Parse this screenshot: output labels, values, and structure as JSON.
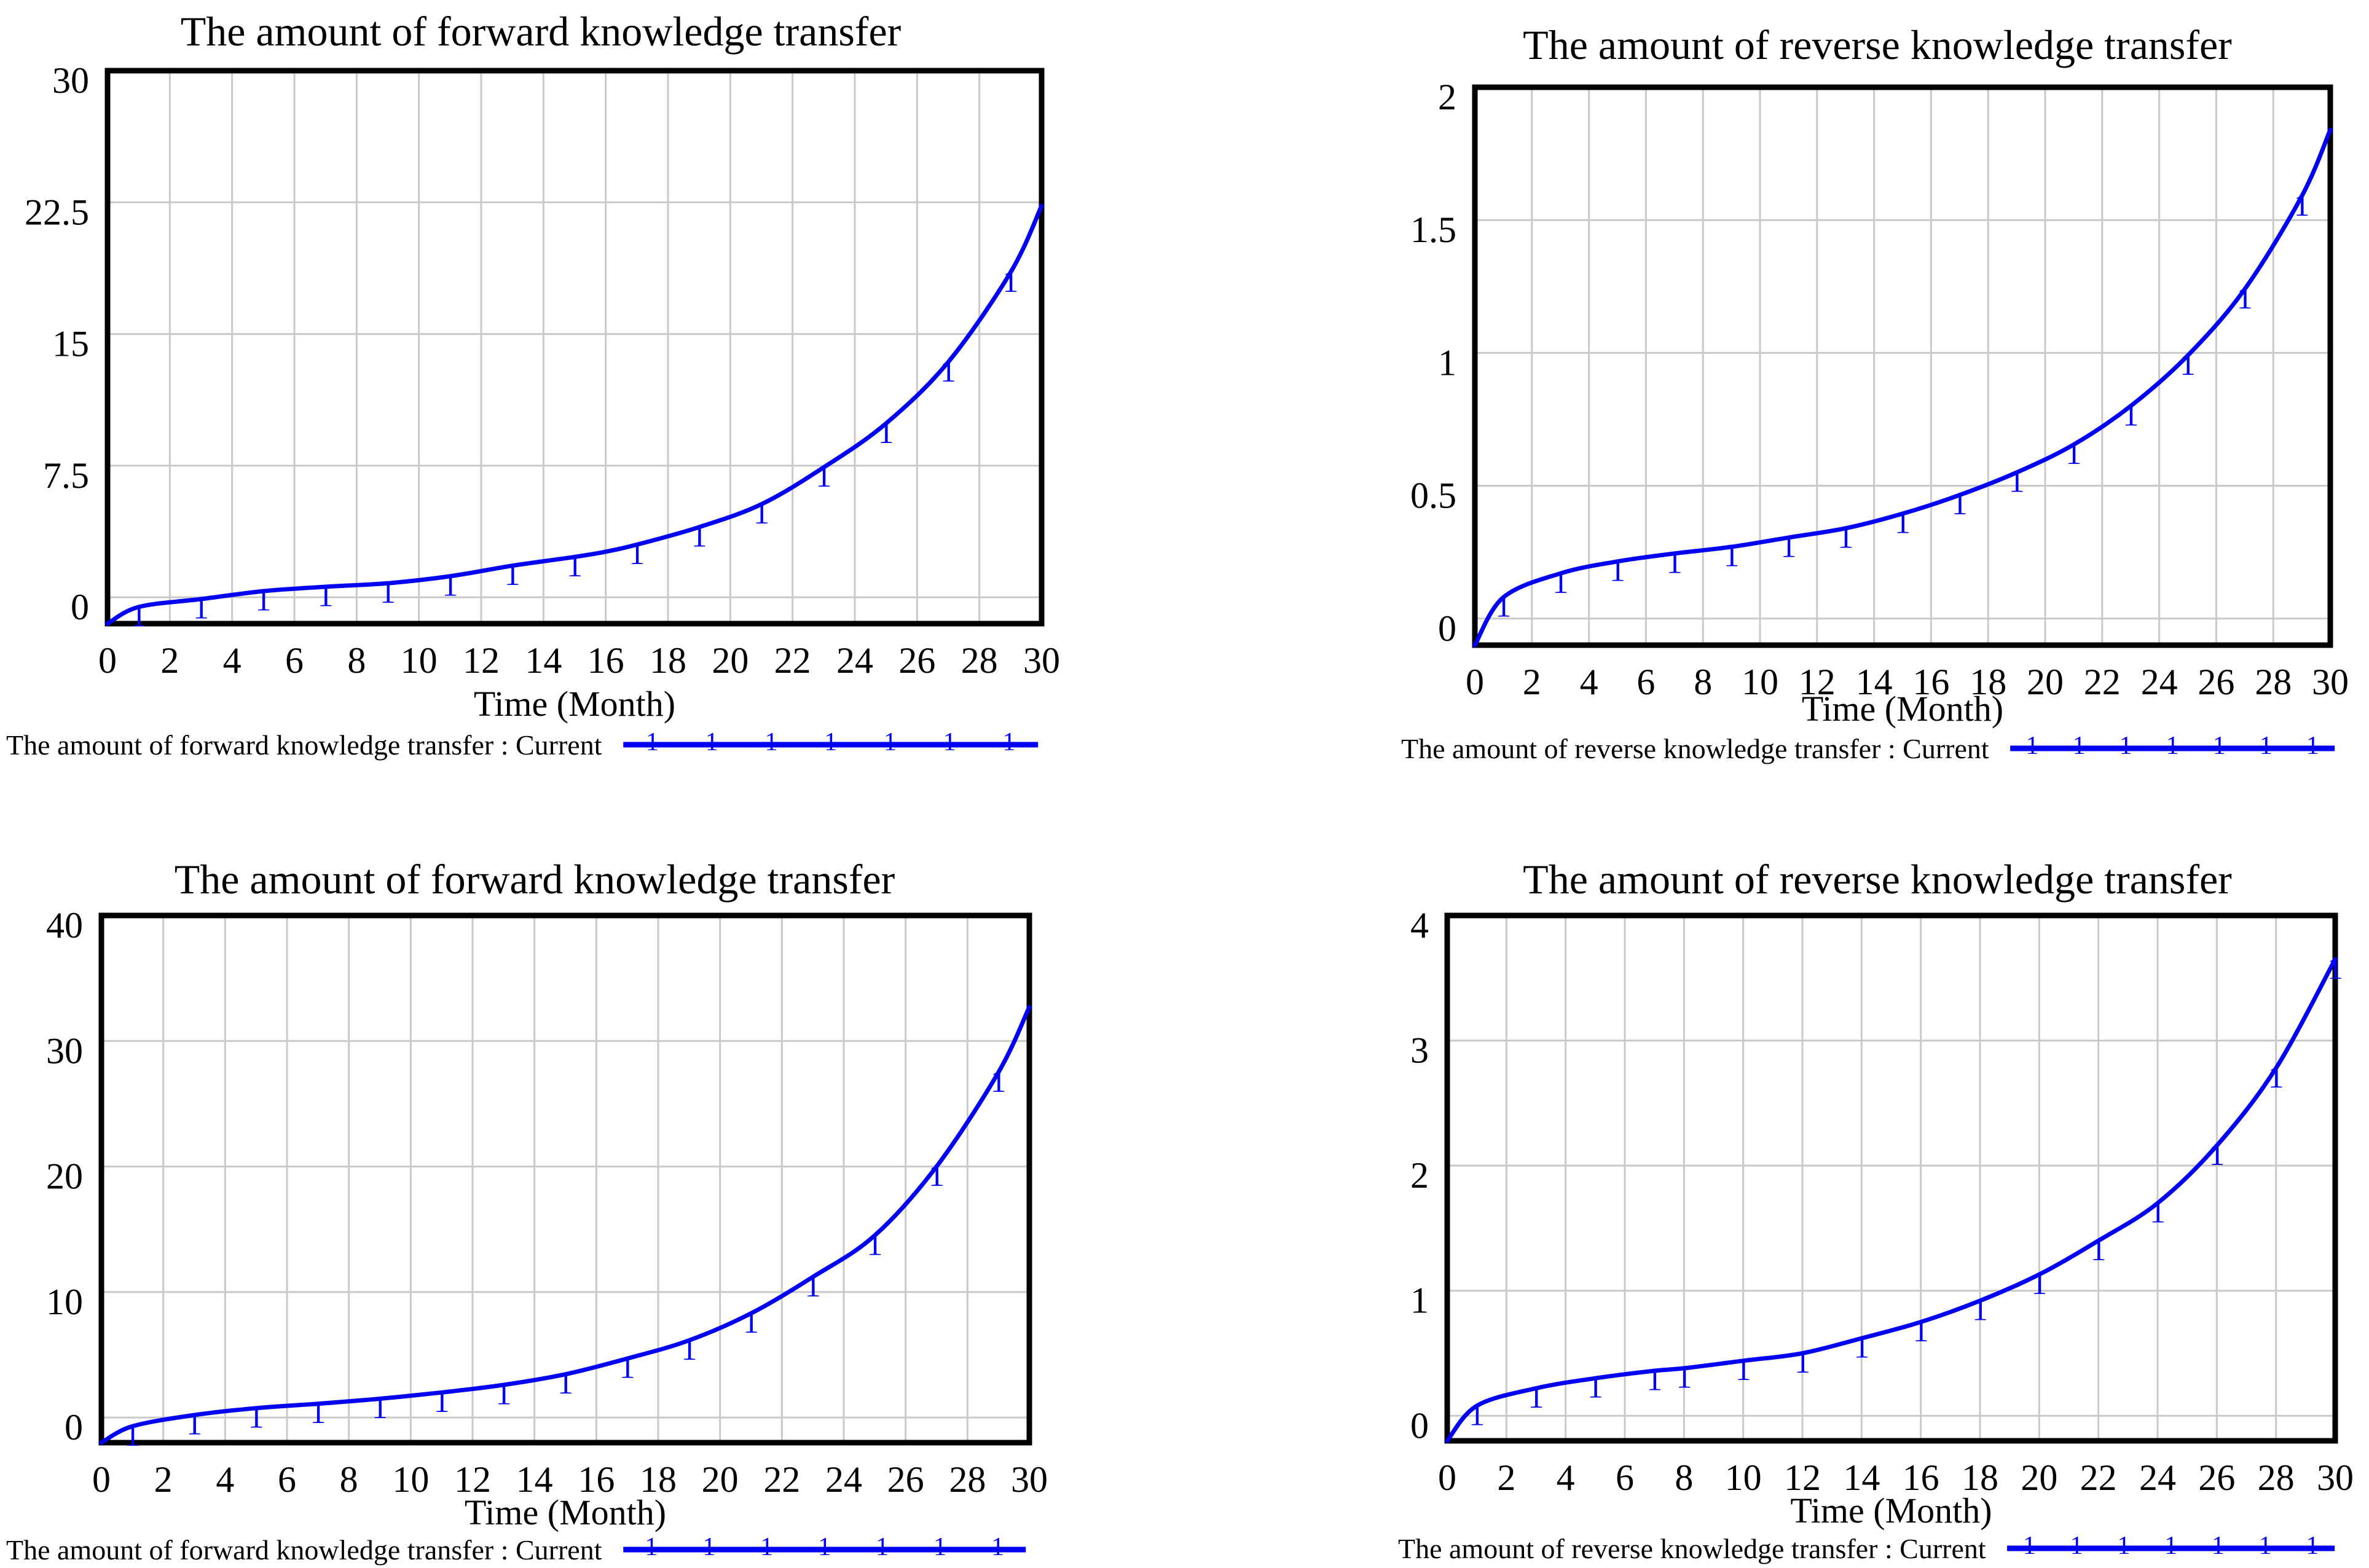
{
  "chart_data": [
    {
      "type": "line",
      "title": "The amount of forward knowledge transfer",
      "xlabel": "Time (Month)",
      "x_ticks": [
        0,
        2,
        4,
        6,
        8,
        10,
        12,
        14,
        16,
        18,
        20,
        22,
        24,
        26,
        28,
        30
      ],
      "y_tick_labels": [
        "30",
        "22.5",
        "15",
        "7.5",
        "0"
      ],
      "xlim": [
        0,
        30
      ],
      "ylim": [
        0,
        30
      ],
      "grid": true,
      "legend_position": "bottom",
      "legend_label": "The amount of forward knowledge transfer : Current",
      "series_marker": "1",
      "line_color": "#0000f2",
      "grid_color": "#c9c9c9",
      "frame_color": "#000000",
      "series": {
        "name": "The amount of forward knowledge transfer : Current",
        "x": [
          0,
          1,
          3,
          5,
          7,
          9,
          11,
          13,
          15,
          16,
          17,
          19,
          21,
          23,
          25,
          27,
          29,
          30
        ],
        "y": [
          -1.5,
          -0.55,
          -0.1,
          0.35,
          0.6,
          0.8,
          1.2,
          1.8,
          2.3,
          2.6,
          3.0,
          4.0,
          5.3,
          7.4,
          9.9,
          13.4,
          18.5,
          22.3
        ]
      },
      "markers": [
        [
          1,
          -0.55
        ],
        [
          3,
          -0.1
        ],
        [
          5,
          0.35
        ],
        [
          7,
          0.6
        ],
        [
          9,
          0.8
        ],
        [
          11,
          1.2
        ],
        [
          13,
          1.8
        ],
        [
          15,
          2.3
        ],
        [
          17,
          3.0
        ],
        [
          19,
          4.0
        ],
        [
          21,
          5.3
        ],
        [
          23,
          7.4
        ],
        [
          25,
          9.9
        ],
        [
          27,
          13.4
        ],
        [
          29,
          18.5
        ]
      ]
    },
    {
      "type": "line",
      "title": "The amount of reverse knowledge transfer",
      "xlabel": "Time (Month)",
      "x_ticks": [
        0,
        2,
        4,
        6,
        8,
        10,
        12,
        14,
        16,
        18,
        20,
        22,
        24,
        26,
        28,
        30
      ],
      "y_tick_labels": [
        "2",
        "1.5",
        "1",
        "0.5",
        "0"
      ],
      "xlim": [
        0,
        30
      ],
      "ylim": [
        0,
        2
      ],
      "grid": true,
      "legend_position": "bottom",
      "legend_label": "The amount of reverse knowledge transfer : Current",
      "series_marker": "1",
      "line_color": "#0000f2",
      "grid_color": "#c9c9c9",
      "frame_color": "#000000",
      "series": {
        "name": "The amount of reverse knowledge transfer : Current",
        "x": [
          0,
          1,
          3,
          5,
          7,
          9,
          11,
          13,
          15,
          17,
          19,
          21,
          23,
          25,
          27,
          29,
          30
        ],
        "y": [
          -0.1,
          0.08,
          0.17,
          0.215,
          0.245,
          0.27,
          0.305,
          0.34,
          0.395,
          0.465,
          0.55,
          0.655,
          0.8,
          0.99,
          1.24,
          1.59,
          1.84
        ]
      },
      "markers": [
        [
          1,
          0.08
        ],
        [
          3,
          0.17
        ],
        [
          5,
          0.215
        ],
        [
          7,
          0.245
        ],
        [
          9,
          0.27
        ],
        [
          11,
          0.305
        ],
        [
          13,
          0.34
        ],
        [
          15,
          0.395
        ],
        [
          17,
          0.465
        ],
        [
          19,
          0.55
        ],
        [
          21,
          0.655
        ],
        [
          23,
          0.8
        ],
        [
          25,
          0.99
        ],
        [
          27,
          1.24
        ],
        [
          29,
          1.59
        ]
      ]
    },
    {
      "type": "line",
      "title": "The amount of forward knowledge transfer",
      "xlabel": "Time (Month)",
      "x_ticks": [
        0,
        2,
        4,
        6,
        8,
        10,
        12,
        14,
        16,
        18,
        20,
        22,
        24,
        26,
        28,
        30
      ],
      "y_tick_labels": [
        "40",
        "30",
        "20",
        "10",
        "0"
      ],
      "xlim": [
        0,
        30
      ],
      "ylim": [
        0,
        40
      ],
      "grid": true,
      "legend_position": "bottom",
      "legend_label": "The amount of forward knowledge transfer : Current",
      "series_marker": "1",
      "line_color": "#0000f2",
      "grid_color": "#c9c9c9",
      "frame_color": "#000000",
      "series": {
        "name": "The amount of forward knowledge transfer : Current",
        "x": [
          0,
          1,
          3,
          5,
          7,
          9,
          11,
          13,
          15,
          17,
          19,
          21,
          23,
          25,
          27,
          29,
          30
        ],
        "y": [
          -2,
          -0.7,
          0.2,
          0.75,
          1.1,
          1.5,
          2.0,
          2.6,
          3.45,
          4.7,
          6.15,
          8.3,
          11.2,
          14.5,
          20.0,
          27.5,
          32.7
        ]
      },
      "markers": [
        [
          1,
          -0.7
        ],
        [
          3,
          0.2
        ],
        [
          5,
          0.75
        ],
        [
          7,
          1.1
        ],
        [
          9,
          1.5
        ],
        [
          11,
          2.0
        ],
        [
          13,
          2.6
        ],
        [
          15,
          3.45
        ],
        [
          17,
          4.7
        ],
        [
          19,
          6.15
        ],
        [
          21,
          8.3
        ],
        [
          23,
          11.2
        ],
        [
          25,
          14.5
        ],
        [
          27,
          20.0
        ],
        [
          29,
          27.5
        ]
      ]
    },
    {
      "type": "line",
      "title": "The amount of reverse knowledge transfer",
      "xlabel": "Time (Month)",
      "x_ticks": [
        0,
        2,
        4,
        6,
        8,
        10,
        12,
        14,
        16,
        18,
        20,
        22,
        24,
        26,
        28,
        30
      ],
      "y_tick_labels": [
        "4",
        "3",
        "2",
        "1",
        "0"
      ],
      "xlim": [
        0,
        30
      ],
      "ylim": [
        0,
        4
      ],
      "grid": true,
      "legend_position": "bottom",
      "legend_label": "The amount of reverse knowledge transfer : Current",
      "series_marker": "1",
      "line_color": "#0000f2",
      "grid_color": "#c9c9c9",
      "frame_color": "#000000",
      "series": {
        "name": "The amount of reverse knowledge transfer : Current",
        "x": [
          0,
          1,
          3,
          5,
          7,
          8,
          10,
          12,
          14,
          16,
          18,
          20,
          22,
          24,
          26,
          28,
          30
        ],
        "y": [
          -0.2,
          0.08,
          0.22,
          0.3,
          0.36,
          0.38,
          0.44,
          0.5,
          0.62,
          0.75,
          0.92,
          1.13,
          1.4,
          1.7,
          2.16,
          2.78,
          3.65
        ]
      },
      "markers": [
        [
          1,
          0.08
        ],
        [
          3,
          0.22
        ],
        [
          5,
          0.3
        ],
        [
          7,
          0.36
        ],
        [
          8,
          0.38
        ],
        [
          10,
          0.44
        ],
        [
          12,
          0.5
        ],
        [
          14,
          0.62
        ],
        [
          16,
          0.75
        ],
        [
          18,
          0.92
        ],
        [
          20,
          1.13
        ],
        [
          22,
          1.4
        ],
        [
          24,
          1.7
        ],
        [
          26,
          2.16
        ],
        [
          28,
          2.78
        ],
        [
          30,
          3.65
        ]
      ]
    }
  ]
}
